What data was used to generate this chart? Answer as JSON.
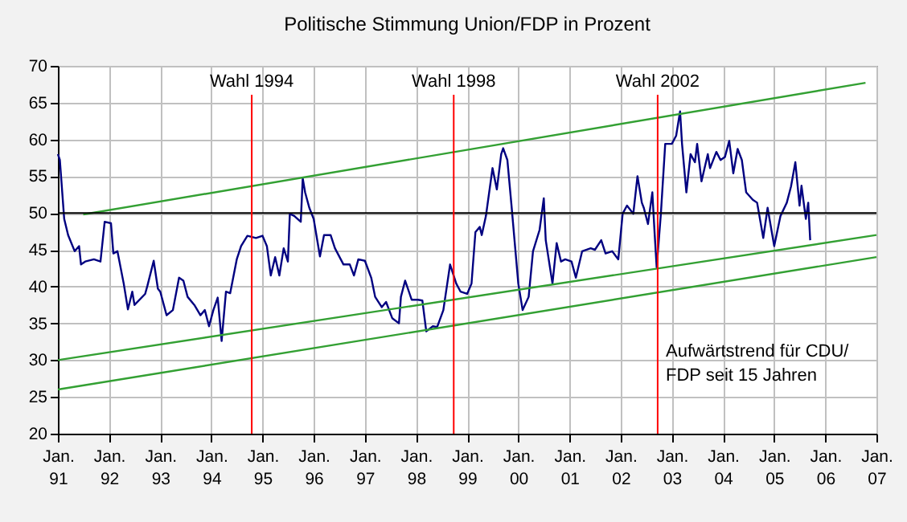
{
  "chart_data": {
    "type": "line",
    "title": "Politische Stimmung Union/FDP in Prozent",
    "xlim": [
      "1991-01-01",
      "2007-01-01"
    ],
    "xticks": [
      {
        "value": "1991-01-01",
        "label": "Jan.\n91"
      },
      {
        "value": "1992-01-01",
        "label": "Jan.\n92"
      },
      {
        "value": "1993-01-01",
        "label": "Jan.\n93"
      },
      {
        "value": "1994-01-01",
        "label": "Jan.\n94"
      },
      {
        "value": "1995-01-01",
        "label": "Jan.\n95"
      },
      {
        "value": "1996-01-01",
        "label": "Jan.\n96"
      },
      {
        "value": "1997-01-01",
        "label": "Jan.\n97"
      },
      {
        "value": "1998-01-01",
        "label": "Jan.\n98"
      },
      {
        "value": "1999-01-01",
        "label": "Jan.\n99"
      },
      {
        "value": "2000-01-01",
        "label": "Jan.\n00"
      },
      {
        "value": "2001-01-01",
        "label": "Jan.\n01"
      },
      {
        "value": "2002-01-01",
        "label": "Jan.\n02"
      },
      {
        "value": "2003-01-01",
        "label": "Jan.\n03"
      },
      {
        "value": "2004-01-01",
        "label": "Jan.\n04"
      },
      {
        "value": "2005-01-01",
        "label": "Jan.\n05"
      },
      {
        "value": "2006-01-01",
        "label": "Jan.\n06"
      },
      {
        "value": "2007-01-01",
        "label": "Jan.\n07"
      }
    ],
    "ylim": [
      20,
      70
    ],
    "yticks": [
      20,
      25,
      30,
      35,
      40,
      45,
      50,
      55,
      60,
      65,
      70
    ],
    "grid": true,
    "series": [
      {
        "color": "#000080",
        "x": [
          "1991-01-01",
          "1991-01-15",
          "1991-02-15",
          "1991-03-15",
          "1991-05-01",
          "1991-06-01",
          "1991-06-15",
          "1991-07-15",
          "1991-09-15",
          "1991-11-01",
          "1991-12-01",
          "1992-01-15",
          "1992-02-01",
          "1992-03-01",
          "1992-04-15",
          "1992-05-15",
          "1992-06-15",
          "1992-07-01",
          "1992-09-15",
          "1992-10-01",
          "1992-11-15",
          "1992-12-15",
          "1993-01-01",
          "1993-02-15",
          "1993-04-01",
          "1993-05-15",
          "1993-06-15",
          "1993-07-15",
          "1993-09-01",
          "1993-10-15",
          "1993-11-15",
          "1993-12-15",
          "1994-01-15",
          "1994-02-15",
          "1994-03-15",
          "1994-04-15",
          "1994-05-15",
          "1994-07-01",
          "1994-08-01",
          "1994-09-15",
          "1994-11-15",
          "1995-01-01",
          "1995-02-01",
          "1995-03-01",
          "1995-04-01",
          "1995-05-01",
          "1995-06-01",
          "1995-07-01",
          "1995-07-15",
          "1995-08-15",
          "1995-10-01",
          "1995-10-15",
          "1995-11-01",
          "1995-12-01",
          "1996-01-01",
          "1996-02-15",
          "1996-03-15",
          "1996-05-01",
          "1996-06-01",
          "1996-08-01",
          "1996-09-15",
          "1996-10-15",
          "1996-11-15",
          "1997-01-01",
          "1997-02-15",
          "1997-03-15",
          "1997-05-01",
          "1997-06-01",
          "1997-07-15",
          "1997-09-01",
          "1997-09-15",
          "1997-10-15",
          "1997-12-01",
          "1998-01-15",
          "1998-02-15",
          "1998-03-15",
          "1998-05-01",
          "1998-06-01",
          "1998-07-15",
          "1998-09-01",
          "1998-10-15",
          "1998-11-15",
          "1999-01-01",
          "1999-02-01",
          "1999-03-01",
          "1999-04-01",
          "1999-04-15",
          "1999-05-15",
          "1999-07-01",
          "1999-08-01",
          "1999-09-01",
          "1999-09-15",
          "1999-10-15",
          "1999-11-15",
          "2000-01-01",
          "2000-02-01",
          "2000-03-15",
          "2000-04-15",
          "2000-06-01",
          "2000-07-01",
          "2000-07-15",
          "2000-09-01",
          "2000-10-01",
          "2000-11-01",
          "2000-12-01",
          "2001-01-15",
          "2001-02-15",
          "2001-04-01",
          "2001-06-01",
          "2001-07-01",
          "2001-08-15",
          "2001-09-15",
          "2001-11-01",
          "2001-12-15",
          "2002-01-15",
          "2002-02-15",
          "2002-04-01",
          "2002-05-01",
          "2002-06-01",
          "2002-06-15",
          "2002-07-15",
          "2002-08-15",
          "2002-09-01",
          "2002-09-15",
          "2002-10-15",
          "2002-11-15",
          "2003-01-01",
          "2003-02-01",
          "2003-03-01",
          "2003-03-15",
          "2003-04-15",
          "2003-05-15",
          "2003-06-15",
          "2003-07-01",
          "2003-08-01",
          "2003-09-15",
          "2003-10-01",
          "2003-11-15",
          "2003-12-15",
          "2004-01-15",
          "2004-02-15",
          "2004-03-15",
          "2004-04-15",
          "2004-05-15",
          "2004-06-15",
          "2004-08-01",
          "2004-09-01",
          "2004-10-15",
          "2004-11-15",
          "2005-01-01",
          "2005-02-15",
          "2005-04-01",
          "2005-05-01",
          "2005-06-01",
          "2005-07-01",
          "2005-07-15",
          "2005-08-15",
          "2005-09-01",
          "2005-09-15"
        ],
        "values": [
          58,
          57.2,
          49.2,
          47,
          44.8,
          45.5,
          43,
          43.4,
          43.7,
          43.4,
          48.8,
          48.6,
          44.5,
          44.8,
          40.4,
          36.9,
          39.3,
          37.5,
          39,
          40.1,
          43.5,
          39.7,
          39.3,
          36.1,
          36.8,
          41.2,
          40.8,
          38.6,
          37.5,
          36.1,
          36.8,
          34.6,
          36.8,
          38.5,
          32.6,
          39.3,
          39.1,
          43.7,
          45.5,
          46.9,
          46.6,
          46.9,
          45.5,
          41.5,
          44,
          41.5,
          45.2,
          43.4,
          49.9,
          49.6,
          48.8,
          54.7,
          52.8,
          50.7,
          49.2,
          44.1,
          47,
          47,
          45.2,
          43,
          43,
          41.5,
          43.7,
          43.5,
          41.2,
          38.6,
          37.2,
          37.9,
          35.7,
          35,
          38.6,
          40.8,
          38.2,
          38.2,
          38.1,
          33.9,
          34.6,
          34.5,
          36.8,
          43,
          40.4,
          39.3,
          39,
          40.4,
          47.4,
          48.1,
          47,
          49.6,
          56.1,
          53.2,
          58,
          58.8,
          57.2,
          50.7,
          40.4,
          36.8,
          38.6,
          44.8,
          47.7,
          52,
          46.3,
          40.4,
          45.9,
          43.4,
          43.7,
          43.4,
          41.2,
          44.8,
          45.2,
          45,
          46.3,
          44.5,
          44.8,
          43.7,
          49.9,
          51,
          49.9,
          55,
          51.4,
          50.7,
          48.5,
          52.8,
          47,
          42.6,
          49.9,
          59.4,
          59.4,
          60.5,
          63.8,
          59.4,
          52.8,
          58,
          56.9,
          59.4,
          54.3,
          58,
          56.1,
          58.3,
          57.2,
          57.6,
          59.8,
          55.4,
          58.7,
          57.2,
          52.8,
          51.8,
          51.4,
          46.6,
          50.7,
          45.5,
          49.6,
          51.4,
          53.6,
          56.9,
          51,
          53.7,
          49.2,
          51.4,
          46.3
        ]
      },
      {
        "color": "#33a033",
        "x": [
          "1991-07-01",
          "2006-10-15"
        ],
        "values": [
          49.8,
          67.7
        ]
      },
      {
        "color": "#33a033",
        "x": [
          "1991-01-01",
          "2007-01-01"
        ],
        "values": [
          30,
          47
        ]
      },
      {
        "color": "#33a033",
        "x": [
          "1991-01-01",
          "2007-01-01"
        ],
        "values": [
          26,
          44
        ]
      }
    ],
    "ref_lines": [
      {
        "axis": "y",
        "value": 50,
        "color": "#000000"
      },
      {
        "axis": "x",
        "value": "1994-10-16",
        "label": "Wahl 1994",
        "color": "#ff0000"
      },
      {
        "axis": "x",
        "value": "1998-09-27",
        "label": "Wahl 1998",
        "color": "#ff0000"
      },
      {
        "axis": "x",
        "value": "2002-09-22",
        "label": "Wahl 2002",
        "color": "#ff0000"
      }
    ],
    "annotations": [
      "Aufwärtstrend für CDU/\nFDP seit 15 Jahren"
    ]
  }
}
